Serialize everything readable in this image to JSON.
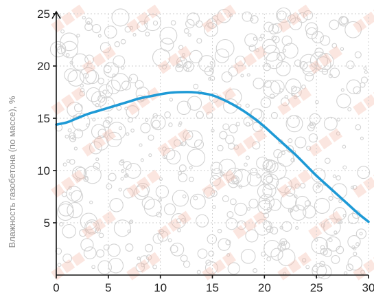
{
  "chart_data": {
    "type": "line",
    "ylabel": "Влажность газобетона (по массе), %",
    "xlabel": "",
    "xlim": [
      0,
      30
    ],
    "ylim": [
      0,
      25
    ],
    "xticks": [
      0,
      5,
      10,
      15,
      20,
      25,
      30
    ],
    "yticks": [
      5,
      10,
      15,
      20,
      25
    ],
    "grid": true,
    "series": [
      {
        "color": "#1e9ad6",
        "x": [
          0,
          1,
          2,
          3,
          4,
          5,
          6,
          7,
          8,
          9,
          10,
          11,
          12,
          13,
          14,
          15,
          16,
          17,
          18,
          19,
          20,
          21,
          22,
          23,
          24,
          25,
          26,
          27,
          28,
          29,
          30
        ],
        "y": [
          14.4,
          14.6,
          15.0,
          15.4,
          15.7,
          16.0,
          16.3,
          16.6,
          16.9,
          17.1,
          17.3,
          17.45,
          17.5,
          17.5,
          17.4,
          17.2,
          16.8,
          16.3,
          15.7,
          15.0,
          14.2,
          13.3,
          12.4,
          11.5,
          10.5,
          9.5,
          8.6,
          7.7,
          6.8,
          5.9,
          5.1
        ]
      }
    ],
    "background": "bubbles-pattern"
  }
}
